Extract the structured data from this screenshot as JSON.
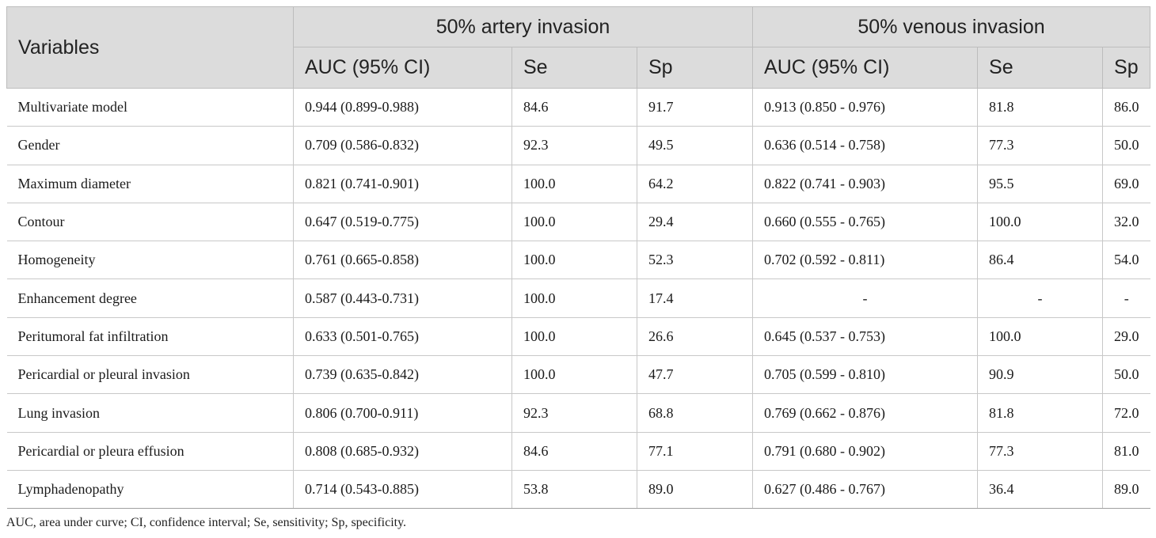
{
  "table": {
    "header": {
      "variables": "Variables",
      "group_artery": "50% artery invasion",
      "group_venous": "50% venous invasion",
      "auc": "AUC (95% CI)",
      "se": "Se",
      "sp": "Sp"
    },
    "rows": [
      {
        "variable": "Multivariate model",
        "a_auc": "0.944 (0.899-0.988)",
        "a_se": "84.6",
        "a_sp": "91.7",
        "v_auc": "0.913 (0.850 - 0.976)",
        "v_se": "81.8",
        "v_sp": "86.0"
      },
      {
        "variable": "Gender",
        "a_auc": "0.709 (0.586-0.832)",
        "a_se": "92.3",
        "a_sp": "49.5",
        "v_auc": "0.636 (0.514 - 0.758)",
        "v_se": "77.3",
        "v_sp": "50.0"
      },
      {
        "variable": "Maximum diameter",
        "a_auc": "0.821 (0.741-0.901)",
        "a_se": "100.0",
        "a_sp": "64.2",
        "v_auc": "0.822 (0.741 - 0.903)",
        "v_se": "95.5",
        "v_sp": "69.0"
      },
      {
        "variable": "Contour",
        "a_auc": "0.647 (0.519-0.775)",
        "a_se": "100.0",
        "a_sp": "29.4",
        "v_auc": "0.660 (0.555 - 0.765)",
        "v_se": "100.0",
        "v_sp": "32.0"
      },
      {
        "variable": "Homogeneity",
        "a_auc": "0.761 (0.665-0.858)",
        "a_se": "100.0",
        "a_sp": "52.3",
        "v_auc": "0.702 (0.592 - 0.811)",
        "v_se": "86.4",
        "v_sp": "54.0"
      },
      {
        "variable": "Enhancement degree",
        "a_auc": "0.587 (0.443-0.731)",
        "a_se": "100.0",
        "a_sp": "17.4",
        "v_auc": "-",
        "v_se": "-",
        "v_sp": "-"
      },
      {
        "variable": "Peritumoral fat infiltration",
        "a_auc": "0.633 (0.501-0.765)",
        "a_se": "100.0",
        "a_sp": "26.6",
        "v_auc": "0.645 (0.537 - 0.753)",
        "v_se": "100.0",
        "v_sp": "29.0"
      },
      {
        "variable": "Pericardial or pleural invasion",
        "a_auc": "0.739 (0.635-0.842)",
        "a_se": "100.0",
        "a_sp": "47.7",
        "v_auc": "0.705 (0.599 - 0.810)",
        "v_se": "90.9",
        "v_sp": "50.0"
      },
      {
        "variable": "Lung invasion",
        "a_auc": "0.806 (0.700-0.911)",
        "a_se": "92.3",
        "a_sp": "68.8",
        "v_auc": "0.769 (0.662 - 0.876)",
        "v_se": "81.8",
        "v_sp": "72.0"
      },
      {
        "variable": "Pericardial or pleura effusion",
        "a_auc": "0.808 (0.685-0.932)",
        "a_se": "84.6",
        "a_sp": "77.1",
        "v_auc": "0.791 (0.680 - 0.902)",
        "v_se": "77.3",
        "v_sp": "81.0"
      },
      {
        "variable": "Lymphadenopathy",
        "a_auc": "0.714 (0.543-0.885)",
        "a_se": "53.8",
        "a_sp": "89.0",
        "v_auc": "0.627 (0.486 - 0.767)",
        "v_se": "36.4",
        "v_sp": "89.0"
      }
    ]
  },
  "footnote": "AUC, area under curve; CI, confidence interval; Se, sensitivity; Sp, specificity."
}
